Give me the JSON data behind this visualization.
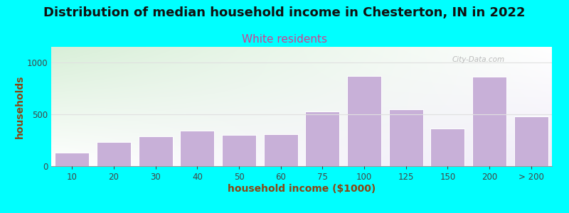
{
  "title": "Distribution of median household income in Chesterton, IN in 2022",
  "subtitle": "White residents",
  "xlabel": "household income ($1000)",
  "ylabel": "households",
  "background_color": "#00FFFF",
  "bar_color": "#c8b0d8",
  "bar_edge_color": "#ffffff",
  "categories": [
    "10",
    "20",
    "30",
    "40",
    "50",
    "60",
    "75",
    "100",
    "125",
    "150",
    "200",
    "> 200"
  ],
  "values": [
    130,
    230,
    290,
    340,
    300,
    310,
    530,
    870,
    545,
    360,
    860,
    480
  ],
  "ylim": [
    0,
    1150
  ],
  "yticks": [
    0,
    500,
    1000
  ],
  "title_fontsize": 13,
  "subtitle_fontsize": 11,
  "subtitle_color": "#d04090",
  "xlabel_color": "#8B4513",
  "ylabel_color": "#8B4513",
  "axis_label_fontsize": 10,
  "tick_fontsize": 8.5,
  "tick_color": "#444444",
  "watermark_text": "City-Data.com",
  "watermark_color": "#b0b0b0",
  "grid_color": "#e0e0e0",
  "bg_color_topleft": "#d8efd8",
  "bg_color_bottomright": "#f0ecf8"
}
